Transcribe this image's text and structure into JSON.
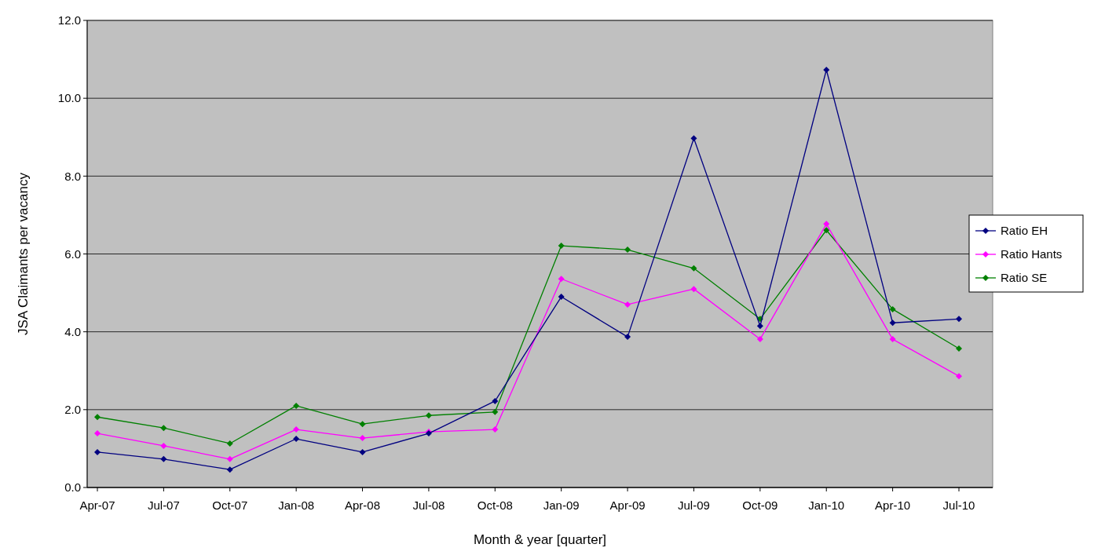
{
  "chart_data": {
    "type": "line",
    "xlabel": "Month & year [quarter]",
    "ylabel": "JSA Claimants per vacancy",
    "categories": [
      "Apr-07",
      "Jul-07",
      "Oct-07",
      "Jan-08",
      "Apr-08",
      "Jul-08",
      "Oct-08",
      "Jan-09",
      "Apr-09",
      "Jul-09",
      "Oct-09",
      "Jan-10",
      "Apr-10",
      "Jul-10"
    ],
    "series": [
      {
        "name": "Ratio EH",
        "color": "#000080",
        "values": [
          0.91,
          0.73,
          0.46,
          1.25,
          0.91,
          1.39,
          2.22,
          4.9,
          3.87,
          8.97,
          4.15,
          10.73,
          4.23,
          4.33
        ]
      },
      {
        "name": "Ratio Hants",
        "color": "#ff00ff",
        "values": [
          1.39,
          1.07,
          0.73,
          1.49,
          1.27,
          1.43,
          1.49,
          5.36,
          4.7,
          5.1,
          3.81,
          6.77,
          3.81,
          2.86
        ]
      },
      {
        "name": "Ratio SE",
        "color": "#008000",
        "values": [
          1.81,
          1.53,
          1.13,
          2.1,
          1.63,
          1.85,
          1.94,
          6.21,
          6.11,
          5.63,
          4.33,
          6.61,
          4.58,
          3.57
        ]
      }
    ],
    "ylim": [
      0,
      12
    ],
    "yticks": [
      {
        "value": 0,
        "label": "0.0"
      },
      {
        "value": 2,
        "label": "2.0"
      },
      {
        "value": 4,
        "label": "4.0"
      },
      {
        "value": 6,
        "label": "6.0"
      },
      {
        "value": 8,
        "label": "8.0"
      },
      {
        "value": 10,
        "label": "10.0"
      },
      {
        "value": 12,
        "label": "12.0"
      }
    ],
    "grid": "y",
    "legend": "right",
    "marker": "diamond",
    "line_style": "solid"
  }
}
